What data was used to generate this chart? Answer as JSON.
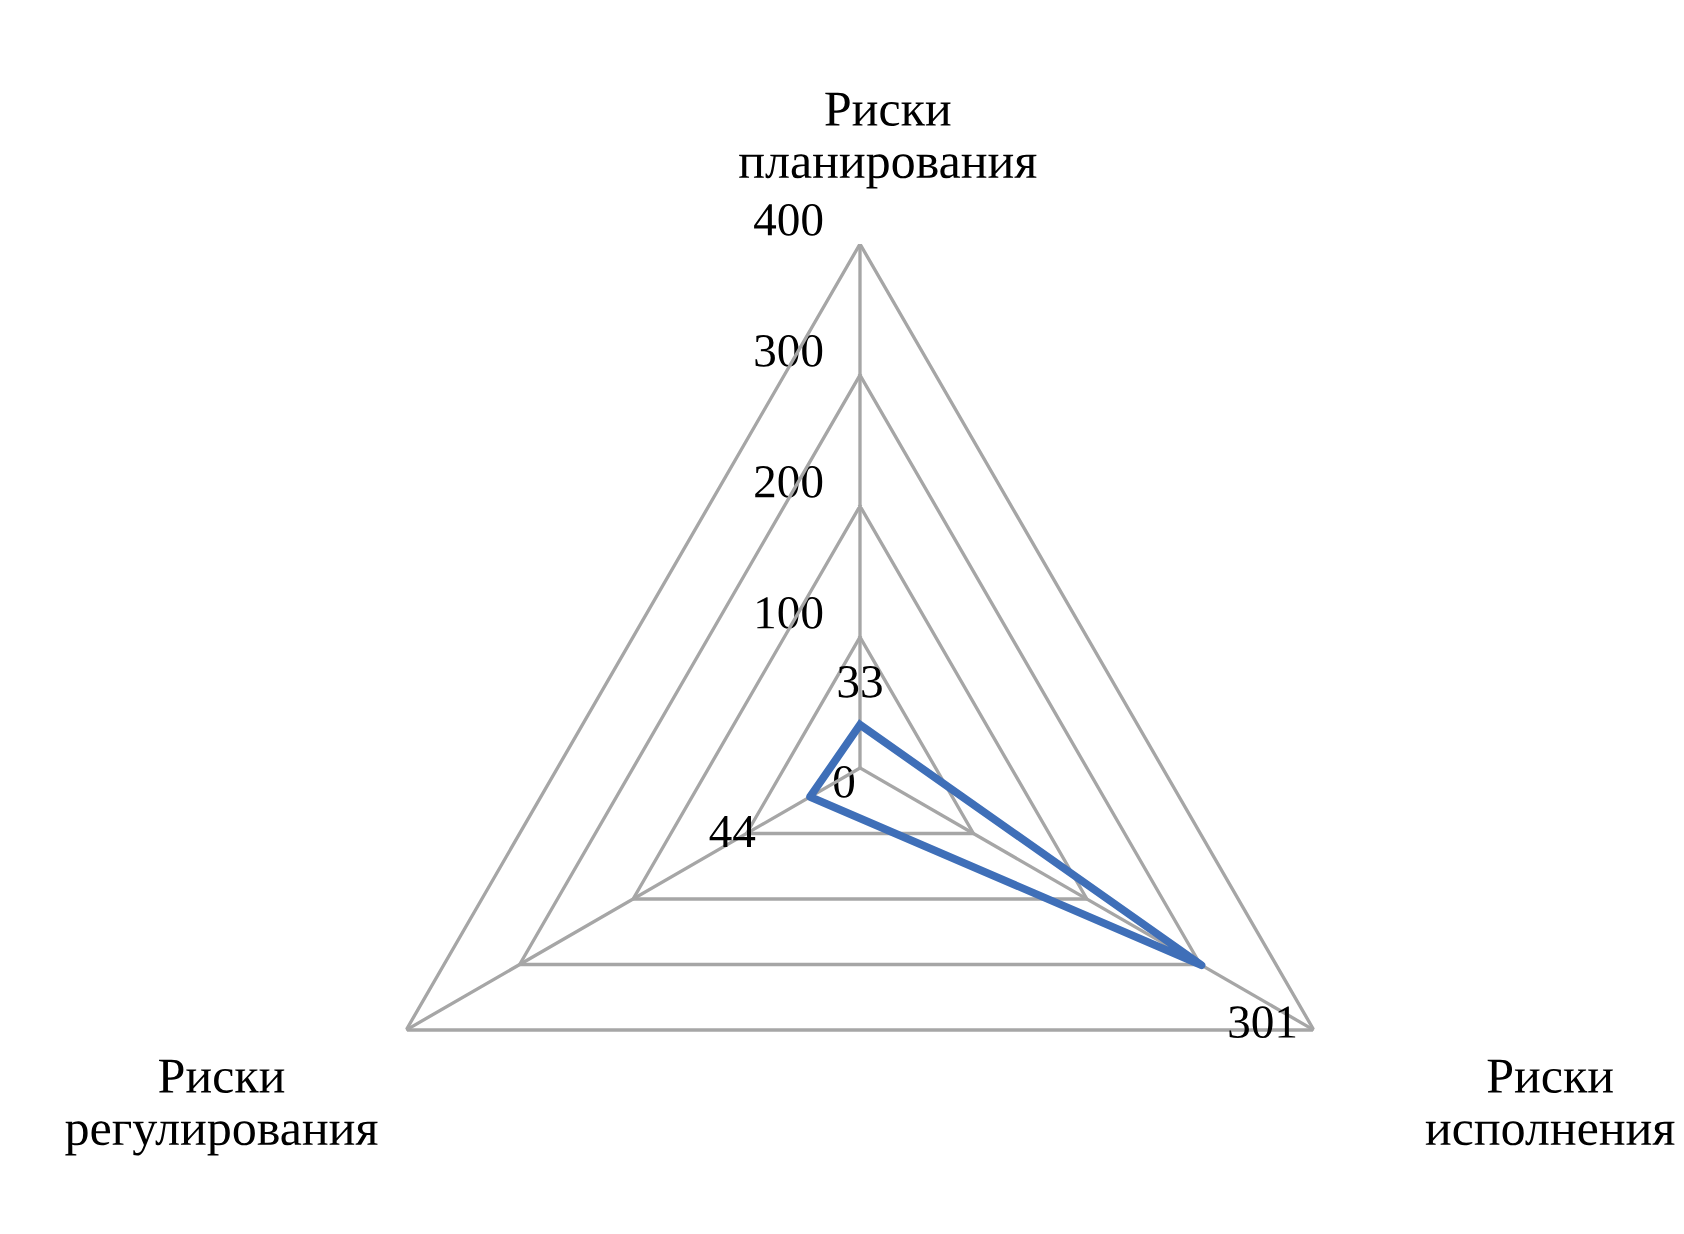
{
  "chart_data": {
    "type": "radar",
    "categories": [
      "Риски\nпланирования",
      "Риски\nисполнения",
      "Риски\nрегулирования"
    ],
    "series": [
      {
        "color": "#3f6fb8",
        "values": [
          33,
          301,
          44
        ]
      }
    ],
    "ylim": [
      0,
      400
    ],
    "yticks": [
      0,
      100,
      200,
      300,
      400
    ],
    "grid": true,
    "data_labels": true
  }
}
